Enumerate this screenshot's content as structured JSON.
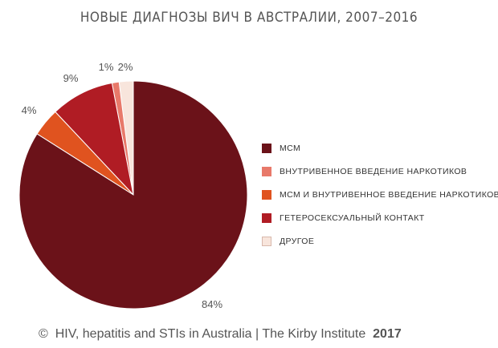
{
  "chart_data": {
    "type": "pie",
    "title": "НОВЫЕ ДИАГНОЗЫ ВИЧ В АВСТРАЛИИ, 2007–2016",
    "slices": [
      {
        "label": "МСМ",
        "value": 84,
        "value_label": "84%",
        "color": "#6b1219"
      },
      {
        "label": "ВНУТРИВЕННОЕ ВВЕДЕНИЕ НАРКОТИКОВ",
        "value": 1,
        "value_label": "1%",
        "color": "#e8796a"
      },
      {
        "label": "МСМ И ВНУТРИВЕННОЕ ВВЕДЕНИЕ НАРКОТИКОВ",
        "value": 4,
        "value_label": "4%",
        "color": "#e0531f"
      },
      {
        "label": "ГЕТЕРОСЕКСУАЛЬНЫЙ КОНТАКТ",
        "value": 9,
        "value_label": "9%",
        "color": "#b01c24"
      },
      {
        "label": "ДРУГОЕ",
        "value": 2,
        "value_label": "2%",
        "color": "#f8e5dc"
      }
    ],
    "legend_position": "right"
  },
  "footer": {
    "copyright_symbol": "©",
    "source": "HIV, hepatitis and STIs in Australia | The Kirby Institute",
    "year": "2017"
  }
}
